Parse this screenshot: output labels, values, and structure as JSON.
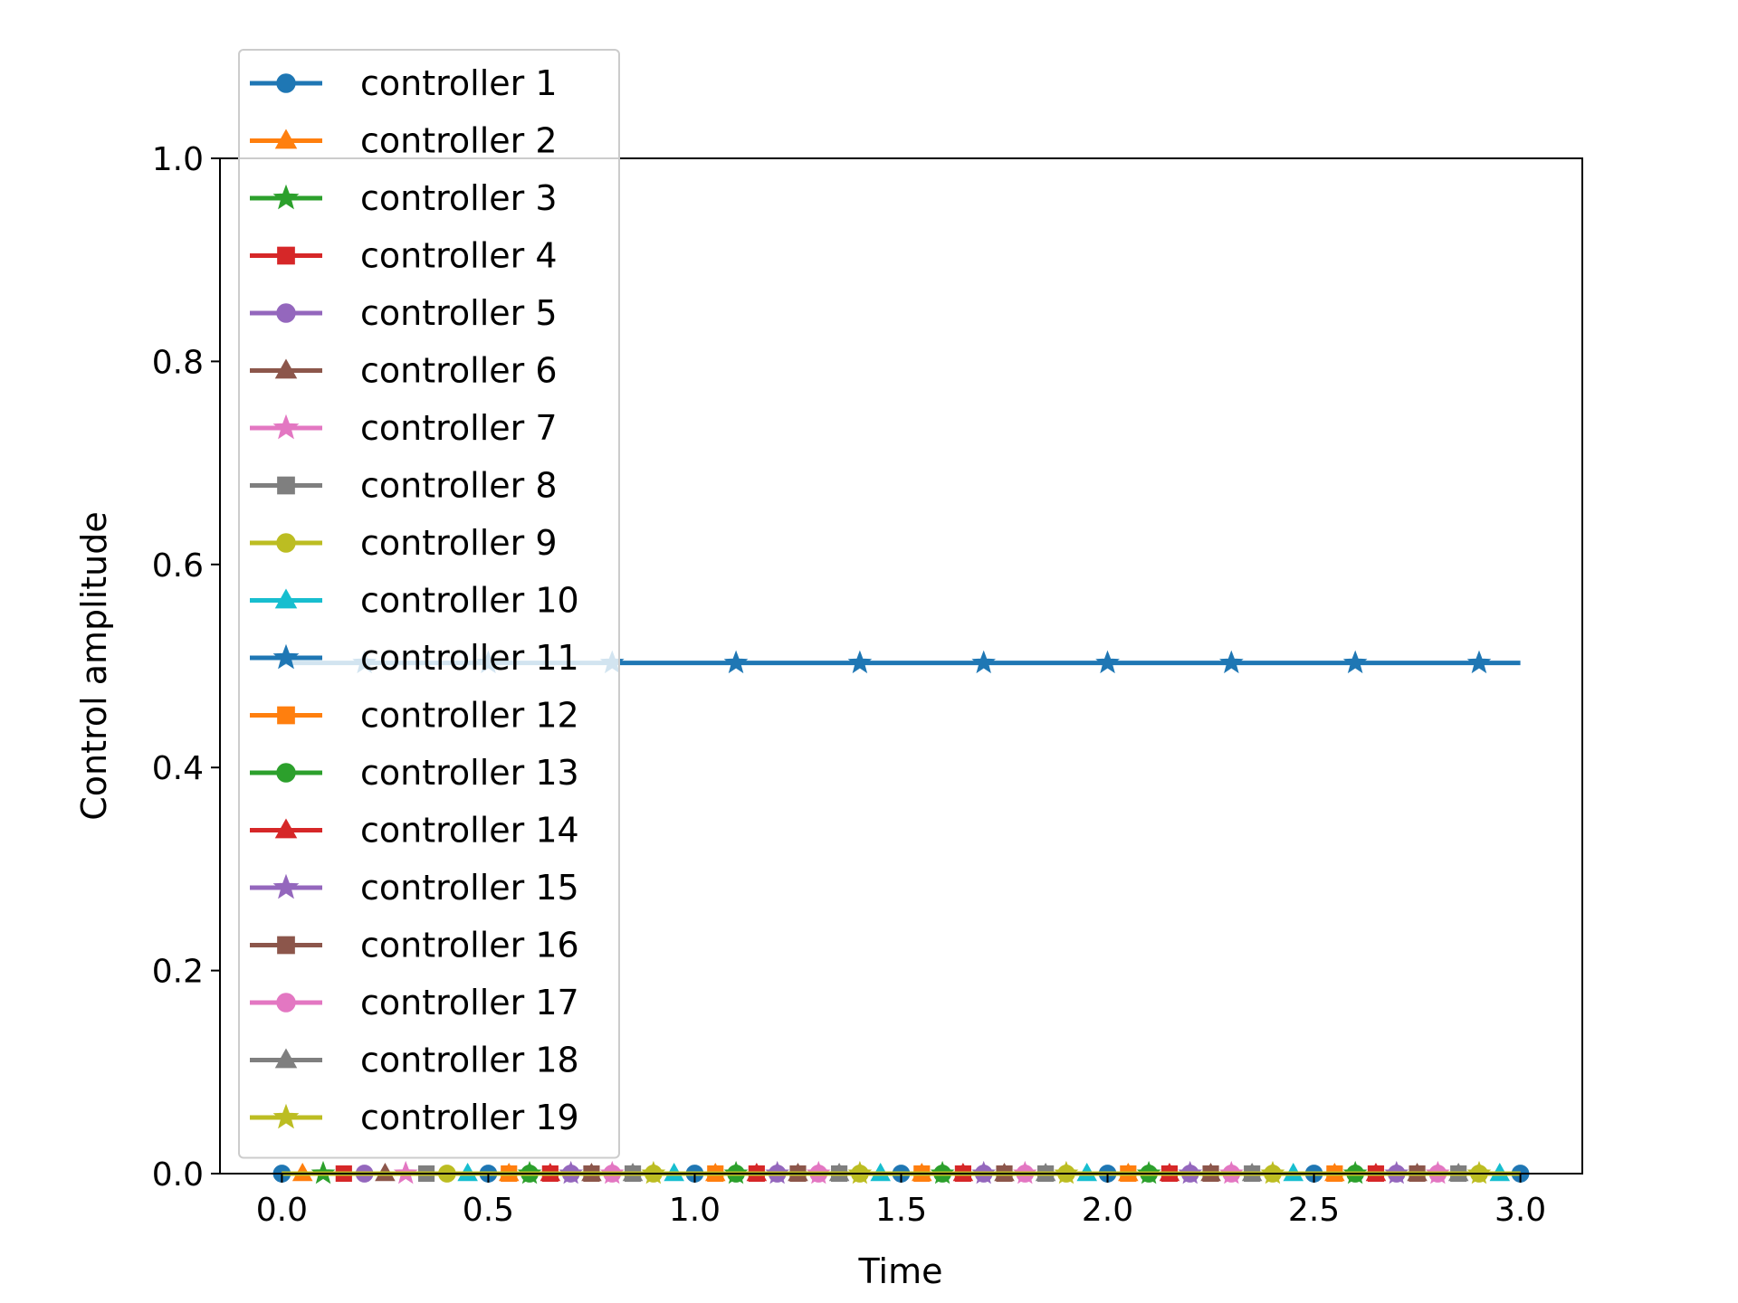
{
  "chart_data": {
    "type": "line",
    "title": "",
    "xlabel": "Time",
    "ylabel": "Control amplitude",
    "xlim": [
      -0.15,
      3.15
    ],
    "ylim": [
      0.0,
      1.0
    ],
    "xticks": [
      "0.0",
      "0.5",
      "1.0",
      "1.5",
      "2.0",
      "2.5",
      "3.0"
    ],
    "yticks": [
      "0.0",
      "0.2",
      "0.4",
      "0.6",
      "0.8",
      "1.0"
    ],
    "grid": false,
    "legend_position": "upper-left",
    "series": [
      {
        "name": "controller 1",
        "color": "#1f77b4",
        "marker": "circle",
        "x_start": 0.0,
        "marker_step": 0.5,
        "x_end": 3.0,
        "value": 0.0
      },
      {
        "name": "controller 2",
        "color": "#ff7f0e",
        "marker": "triangle",
        "x_start": 0.05,
        "marker_step": 0.5,
        "x_end": 3.0,
        "value": 0.0
      },
      {
        "name": "controller 3",
        "color": "#2ca02c",
        "marker": "star",
        "x_start": 0.1,
        "marker_step": 0.5,
        "x_end": 3.0,
        "value": 0.0
      },
      {
        "name": "controller 4",
        "color": "#d62728",
        "marker": "square",
        "x_start": 0.15,
        "marker_step": 0.5,
        "x_end": 3.0,
        "value": 0.0
      },
      {
        "name": "controller 5",
        "color": "#9467bd",
        "marker": "circle",
        "x_start": 0.2,
        "marker_step": 0.5,
        "x_end": 3.0,
        "value": 0.0
      },
      {
        "name": "controller 6",
        "color": "#8c564b",
        "marker": "triangle",
        "x_start": 0.25,
        "marker_step": 0.5,
        "x_end": 3.0,
        "value": 0.0
      },
      {
        "name": "controller 7",
        "color": "#e377c2",
        "marker": "star",
        "x_start": 0.3,
        "marker_step": 0.5,
        "x_end": 3.0,
        "value": 0.0
      },
      {
        "name": "controller 8",
        "color": "#7f7f7f",
        "marker": "square",
        "x_start": 0.35,
        "marker_step": 0.5,
        "x_end": 3.0,
        "value": 0.0
      },
      {
        "name": "controller 9",
        "color": "#bcbd22",
        "marker": "circle",
        "x_start": 0.4,
        "marker_step": 0.5,
        "x_end": 3.0,
        "value": 0.0
      },
      {
        "name": "controller 10",
        "color": "#17becf",
        "marker": "triangle",
        "x_start": 0.45,
        "marker_step": 0.5,
        "x_end": 3.0,
        "value": 0.0
      },
      {
        "name": "controller 11",
        "color": "#1f77b4",
        "marker": "star",
        "x_start": 0.2,
        "marker_step": 0.3,
        "x_end": 3.0,
        "value": 0.503
      },
      {
        "name": "controller 12",
        "color": "#ff7f0e",
        "marker": "square",
        "x_start": 0.55,
        "marker_step": 0.5,
        "x_end": 3.0,
        "value": 0.0
      },
      {
        "name": "controller 13",
        "color": "#2ca02c",
        "marker": "circle",
        "x_start": 0.6,
        "marker_step": 0.5,
        "x_end": 3.0,
        "value": 0.0
      },
      {
        "name": "controller 14",
        "color": "#d62728",
        "marker": "triangle",
        "x_start": 0.65,
        "marker_step": 0.5,
        "x_end": 3.0,
        "value": 0.0
      },
      {
        "name": "controller 15",
        "color": "#9467bd",
        "marker": "star",
        "x_start": 0.7,
        "marker_step": 0.5,
        "x_end": 3.0,
        "value": 0.0
      },
      {
        "name": "controller 16",
        "color": "#8c564b",
        "marker": "square",
        "x_start": 0.75,
        "marker_step": 0.5,
        "x_end": 3.0,
        "value": 0.0
      },
      {
        "name": "controller 17",
        "color": "#e377c2",
        "marker": "circle",
        "x_start": 0.8,
        "marker_step": 0.5,
        "x_end": 3.0,
        "value": 0.0
      },
      {
        "name": "controller 18",
        "color": "#7f7f7f",
        "marker": "triangle",
        "x_start": 0.85,
        "marker_step": 0.5,
        "x_end": 3.0,
        "value": 0.0
      },
      {
        "name": "controller 19",
        "color": "#bcbd22",
        "marker": "star",
        "x_start": 0.9,
        "marker_step": 0.5,
        "x_end": 3.0,
        "value": 0.0
      }
    ]
  }
}
